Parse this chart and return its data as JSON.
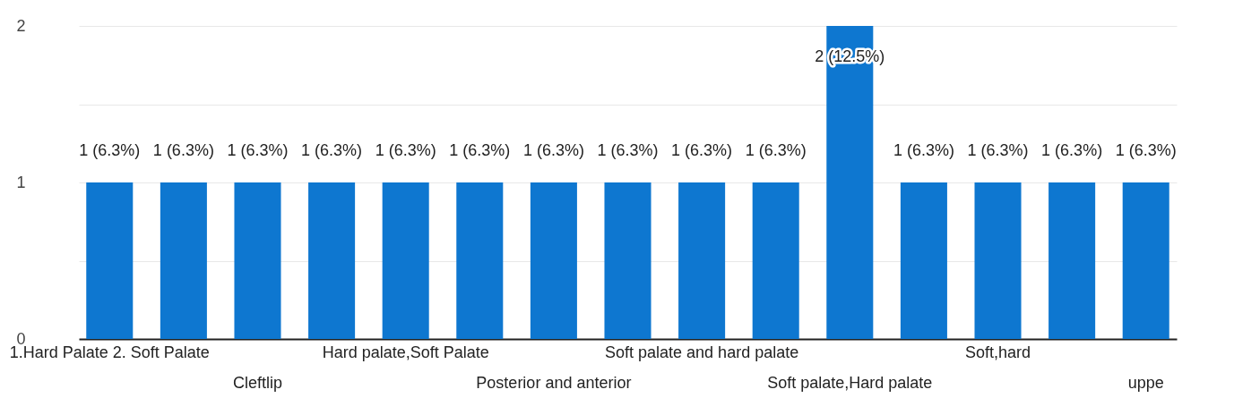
{
  "chart_data": {
    "type": "bar",
    "categories": [
      "1.Hard Palate 2. Soft Palate",
      null,
      "Cleftlip",
      null,
      "Hard palate,Soft Palate",
      null,
      "Posterior and anterior",
      null,
      "Soft palate and hard palate",
      null,
      "Soft palate,Hard palate",
      null,
      "Soft,hard",
      null,
      "uppe"
    ],
    "values": [
      1,
      1,
      1,
      1,
      1,
      1,
      1,
      1,
      1,
      1,
      2,
      1,
      1,
      1,
      1
    ],
    "value_labels": [
      "1 (6.3%)",
      "1 (6.3%)",
      "1 (6.3%)",
      "1 (6.3%)",
      "1 (6.3%)",
      "1 (6.3%)",
      "1 (6.3%)",
      "1 (6.3%)",
      "1 (6.3%)",
      "1 (6.3%)",
      "2 (12.5%)",
      "1 (6.3%)",
      "1 (6.3%)",
      "1 (6.3%)",
      "1 (6.3%)"
    ],
    "color": "#0e77d0",
    "ylim": [
      0,
      2
    ],
    "yticks": [
      0,
      {
        "value": 0.5,
        "label": null
      },
      1,
      {
        "value": 1.5,
        "label": null
      },
      2
    ],
    "grid": true
  }
}
